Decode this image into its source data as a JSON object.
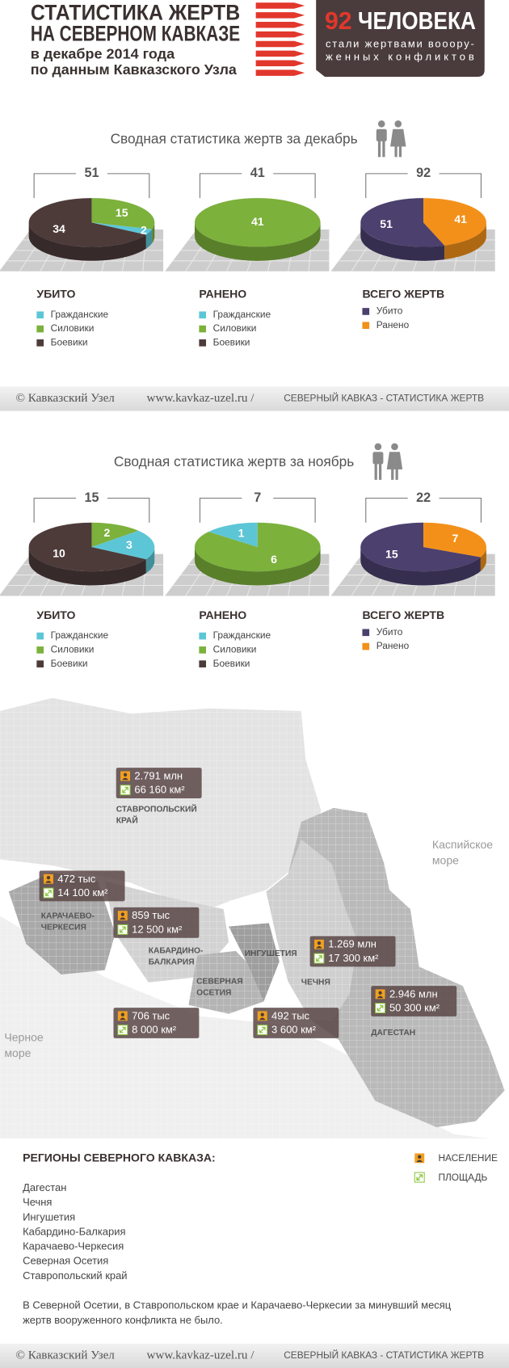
{
  "header": {
    "title_lines": [
      "СТАТИСТИКА ЖЕРТВ",
      "НА СЕВЕРНОМ КАВКАЗЕ"
    ],
    "subtitle_lines": [
      "в декабре 2014 года",
      "по данным Кавказского Узла"
    ],
    "badge": {
      "number": 92,
      "word": "ЧЕЛОВЕКА",
      "lines": [
        "стали жертвами вооору-",
        "женных конфликтов"
      ]
    }
  },
  "sections": [
    {
      "heading": "Сводная статистика жертв за декабрь"
    },
    {
      "heading": "Сводная статистика жертв за ноябрь"
    }
  ],
  "chart_data": [
    {
      "type": "pie",
      "title": "УБИТО",
      "total": 51,
      "categories": [
        "Гражданские",
        "Силовики",
        "Боевики"
      ],
      "values": [
        2,
        15,
        34
      ],
      "colors": [
        "#5cc6d6",
        "#7cb13c",
        "#4d3b3a"
      ]
    },
    {
      "type": "pie",
      "title": "РАНЕНО",
      "total": 41,
      "categories": [
        "Гражданские",
        "Силовики",
        "Боевики"
      ],
      "values": [
        0,
        41,
        0
      ],
      "colors": [
        "#5cc6d6",
        "#7cb13c",
        "#4d3b3a"
      ]
    },
    {
      "type": "pie",
      "title": "ВСЕГО ЖЕРТВ",
      "total": 92,
      "categories": [
        "Убито",
        "Ранено"
      ],
      "values": [
        51,
        41
      ],
      "colors": [
        "#4b406e",
        "#f39019"
      ]
    },
    {
      "type": "pie",
      "title": "УБИТО",
      "total": 15,
      "categories": [
        "Гражданские",
        "Силовики",
        "Боевики"
      ],
      "values": [
        3,
        2,
        10
      ],
      "colors": [
        "#5cc6d6",
        "#7cb13c",
        "#4d3b3a"
      ]
    },
    {
      "type": "pie",
      "title": "РАНЕНО",
      "total": 7,
      "categories": [
        "Гражданские",
        "Силовики",
        "Боевики"
      ],
      "values": [
        1,
        6,
        0
      ],
      "colors": [
        "#5cc6d6",
        "#7cb13c",
        "#4d3b3a"
      ]
    },
    {
      "type": "pie",
      "title": "ВСЕГО ЖЕРТВ",
      "total": 22,
      "categories": [
        "Убито",
        "Ранено"
      ],
      "values": [
        15,
        7
      ],
      "colors": [
        "#4b406e",
        "#f39019"
      ]
    }
  ],
  "map": {
    "sea_labels": [
      {
        "lines": [
          "Каспийское",
          "море"
        ]
      },
      {
        "lines": [
          "Черное",
          "море"
        ]
      }
    ],
    "regions": [
      {
        "label_lines": [
          "СТАВРОПОЛЬСКИЙ",
          "КРАЙ"
        ],
        "population": "2.791 млн",
        "area": "66 160 км²"
      },
      {
        "label_lines": [
          "КАРАЧАЕВО-",
          "ЧЕРКЕСИЯ"
        ],
        "population": "472 тыс",
        "area": "14 100 км²"
      },
      {
        "label_lines": [
          "КАБАРДИНО-",
          "БАЛКАРИЯ"
        ],
        "population": "859 тыс",
        "area": "12 500 км²"
      },
      {
        "label_lines": [
          "СЕВЕРНАЯ",
          "ОСЕТИЯ"
        ],
        "population": "706 тыс",
        "area": "8 000 км²"
      },
      {
        "label_lines": [
          "ИНГУШЕТИЯ"
        ],
        "population": "492 тыс",
        "area": "3 600 км²"
      },
      {
        "label_lines": [
          "ЧЕЧНЯ"
        ],
        "population": "1.269 млн",
        "area": "17 300 км²"
      },
      {
        "label_lines": [
          "ДАГЕСТАН"
        ],
        "population": "2.946 млн",
        "area": "50 300 км²"
      }
    ]
  },
  "legend": {
    "title": "РЕГИОНЫ СЕВЕРНОГО КАВКАЗА:",
    "regions": [
      "Дагестан",
      "Чечня",
      "Ингушетия",
      "Кабардино-Балкария",
      "Карачаево-Черкесия",
      "Северная Осетия",
      "Ставропольский край"
    ],
    "icons": [
      "НАСЕЛЕНИЕ",
      "ПЛОЩАДЬ"
    ],
    "note_lines": [
      "В Северной Осетии, в Ставропольском крае и Карачаево-Черкесии за минувший месяц",
      "жертв вооруженного конфликта не было."
    ]
  },
  "footer": {
    "copyright": "© Кавказский Узел",
    "url": "www.kavkaz-uzel.ru /",
    "section": "СЕВЕРНЫЙ КАВКАЗ - СТАТИСТИКА ЖЕРТВ"
  }
}
